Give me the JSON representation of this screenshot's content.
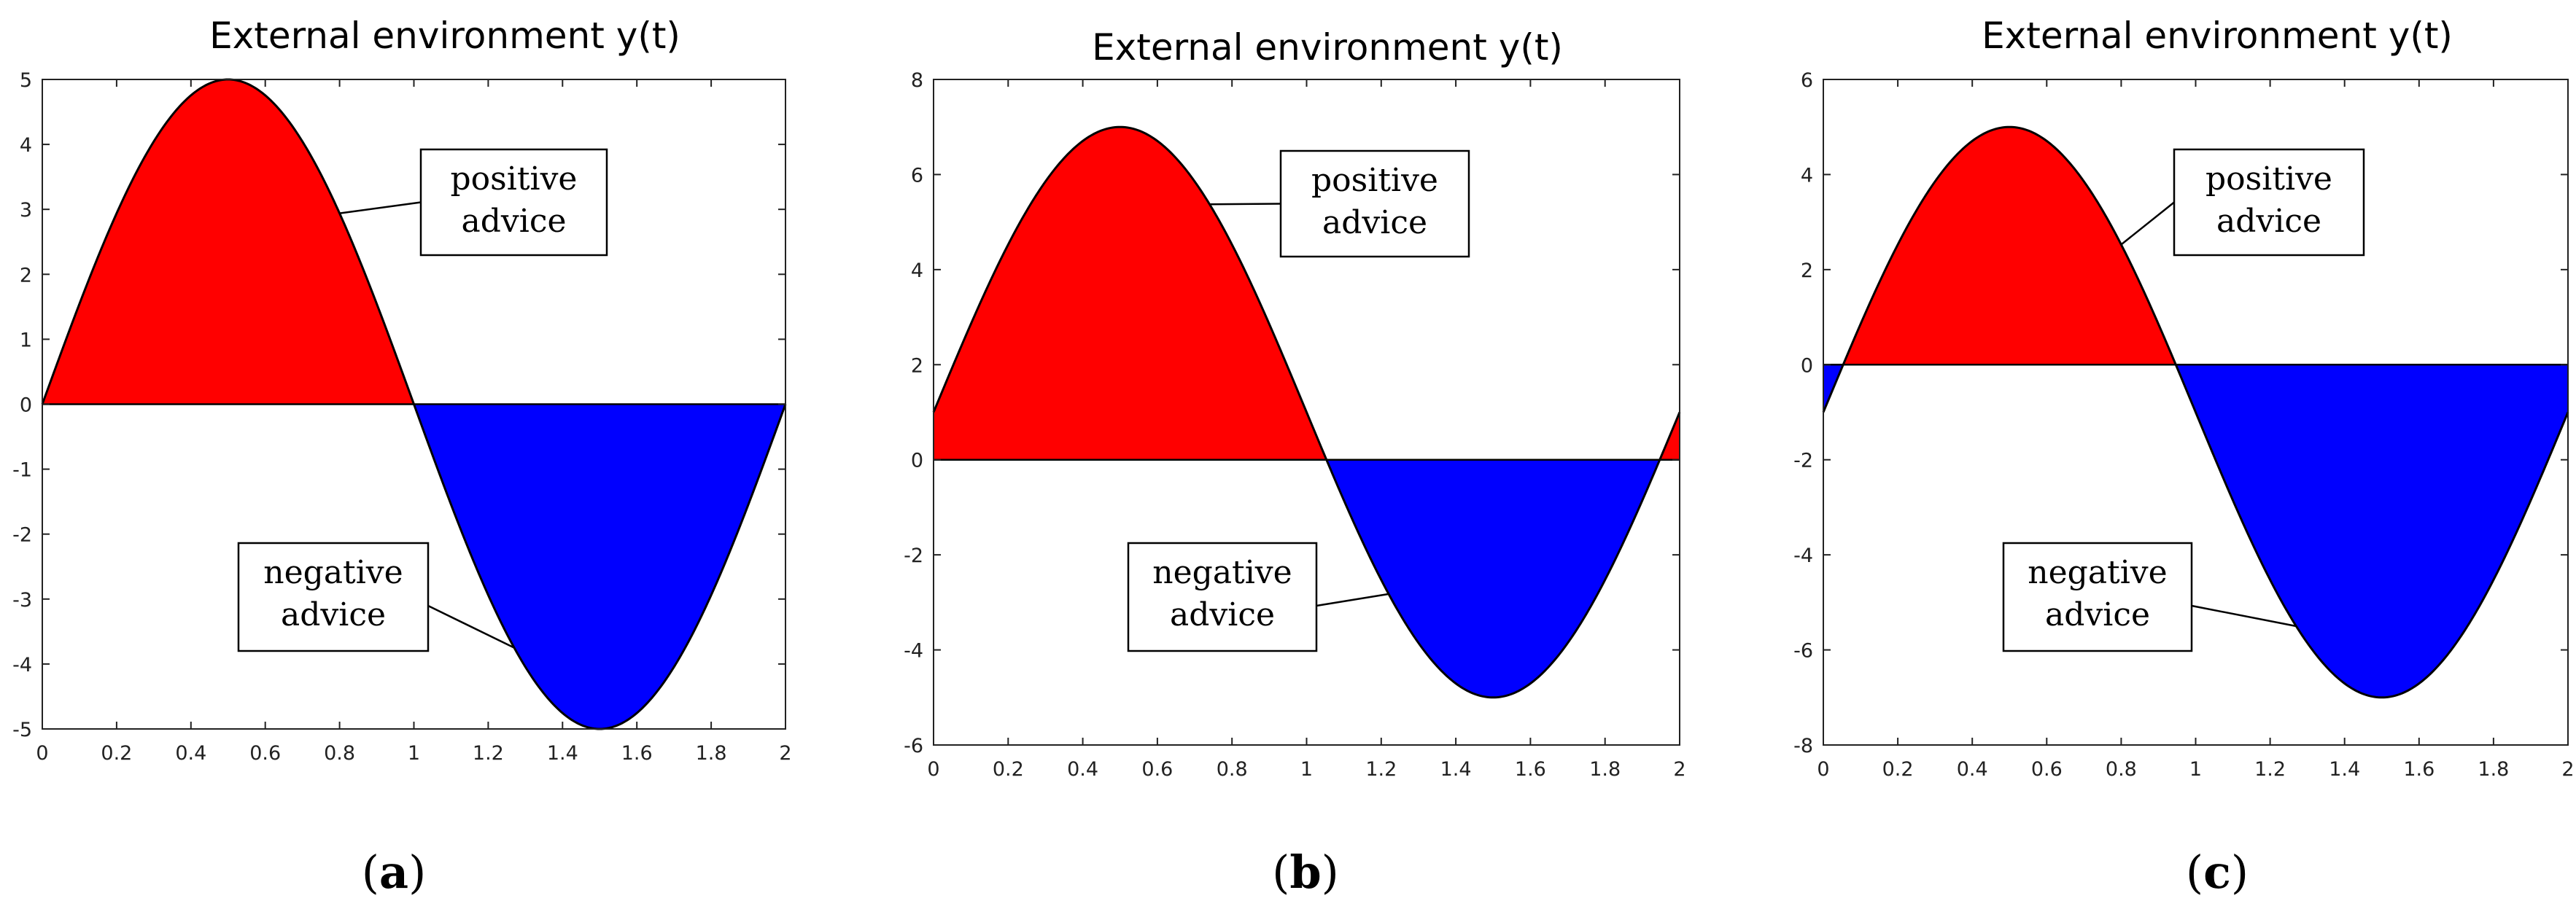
{
  "colors": {
    "positive": "#ff0000",
    "negative": "#0000ff",
    "curve": "#000000",
    "axis": "#000000"
  },
  "chart_data": [
    {
      "type": "area",
      "title": "External environment y(t)",
      "caption": "(a)",
      "caption_letter": "a",
      "xlim": [
        0,
        2
      ],
      "ylim": [
        -5,
        5
      ],
      "x_ticks": [
        0,
        0.2,
        0.4,
        0.6,
        0.8,
        1,
        1.2,
        1.4,
        1.6,
        1.8,
        2
      ],
      "y_ticks": [
        -5,
        -4,
        -3,
        -2,
        -1,
        0,
        1,
        2,
        3,
        4,
        5
      ],
      "x_tick_labels": [
        "0",
        "0.2",
        "0.4",
        "0.6",
        "0.8",
        "1",
        "1.2",
        "1.4",
        "1.6",
        "1.8",
        "2"
      ],
      "y_tick_labels": [
        "-5",
        "-4",
        "-3",
        "-2",
        "-1",
        "0",
        "1",
        "2",
        "3",
        "4",
        "5"
      ],
      "series": {
        "name": "y(t)",
        "function": "offset + amplitude*sin(pi*t)",
        "amplitude": 5,
        "offset": 0
      },
      "annotations": [
        {
          "lines": [
            "positive",
            "advice"
          ],
          "target_x": 0.8
        },
        {
          "lines": [
            "negative",
            "advice"
          ],
          "target_x": 1.27
        }
      ]
    },
    {
      "type": "area",
      "title": "External environment y(t)",
      "caption": "(b)",
      "caption_letter": "b",
      "xlim": [
        0,
        2
      ],
      "ylim": [
        -6,
        8
      ],
      "x_ticks": [
        0,
        0.2,
        0.4,
        0.6,
        0.8,
        1,
        1.2,
        1.4,
        1.6,
        1.8,
        2
      ],
      "y_ticks": [
        -6,
        -4,
        -2,
        0,
        2,
        4,
        6,
        8
      ],
      "x_tick_labels": [
        "0",
        "0.2",
        "0.4",
        "0.6",
        "0.8",
        "1",
        "1.2",
        "1.4",
        "1.6",
        "1.8",
        "2"
      ],
      "y_tick_labels": [
        "-6",
        "-4",
        "-2",
        "0",
        "2",
        "4",
        "6",
        "8"
      ],
      "series": {
        "name": "y(t)",
        "function": "offset + amplitude*sin(pi*t)",
        "amplitude": 6,
        "offset": 1
      },
      "annotations": [
        {
          "lines": [
            "positive",
            "advice"
          ],
          "target_x": 0.74
        },
        {
          "lines": [
            "negative",
            "advice"
          ],
          "target_x": 1.22
        }
      ]
    },
    {
      "type": "area",
      "title": "External environment y(t)",
      "caption": "(c)",
      "caption_letter": "c",
      "xlim": [
        0,
        2
      ],
      "ylim": [
        -8,
        6
      ],
      "x_ticks": [
        0,
        0.2,
        0.4,
        0.6,
        0.8,
        1,
        1.2,
        1.4,
        1.6,
        1.8,
        2
      ],
      "y_ticks": [
        -8,
        -6,
        -4,
        -2,
        0,
        2,
        4,
        6
      ],
      "x_tick_labels": [
        "0",
        "0.2",
        "0.4",
        "0.6",
        "0.8",
        "1",
        "1.2",
        "1.4",
        "1.6",
        "1.8",
        "2"
      ],
      "y_tick_labels": [
        "-8",
        "-6",
        "-4",
        "-2",
        "0",
        "2",
        "4",
        "6"
      ],
      "series": {
        "name": "y(t)",
        "function": "offset + amplitude*sin(pi*t)",
        "amplitude": 6,
        "offset": -1
      },
      "annotations": [
        {
          "lines": [
            "positive",
            "advice"
          ],
          "target_x": 0.8
        },
        {
          "lines": [
            "negative",
            "advice"
          ],
          "target_x": 1.27
        }
      ]
    }
  ]
}
